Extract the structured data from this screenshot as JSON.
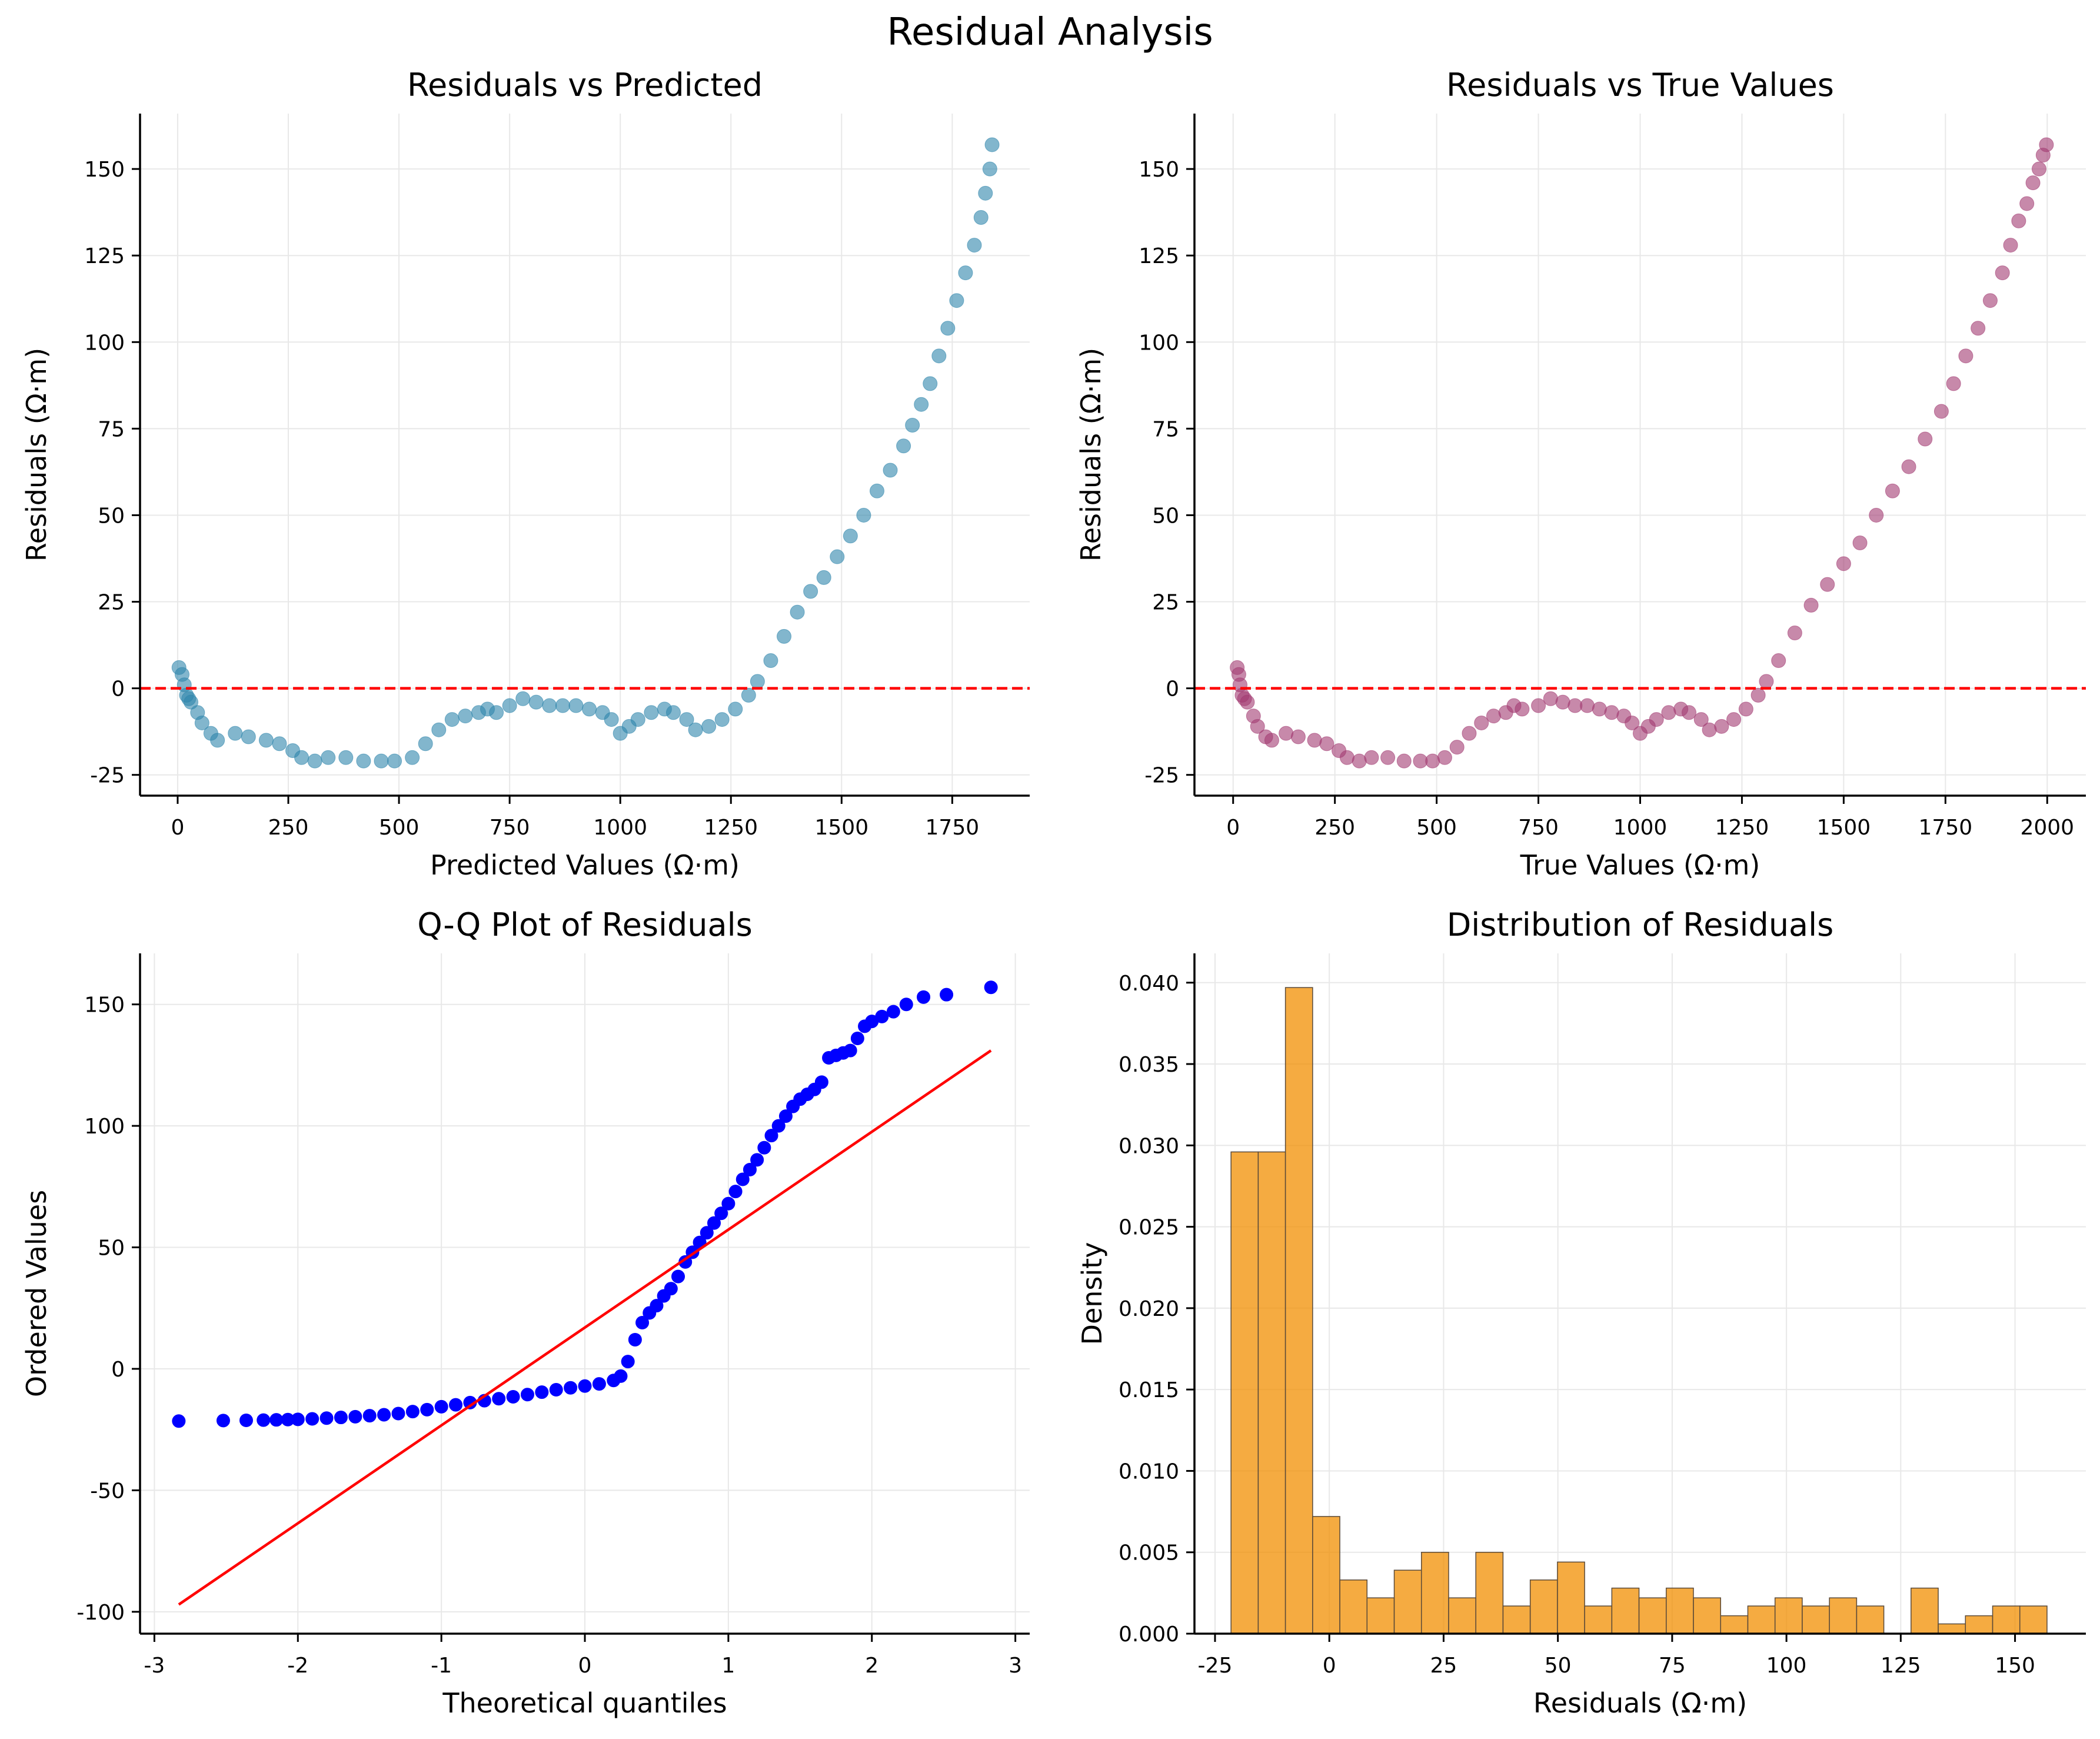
{
  "figure_title": "Residual Analysis",
  "colors": {
    "residuals_vs_predicted": "#2e86ab",
    "residuals_vs_true": "#a23b72",
    "qq_points": "#0000ff",
    "qq_line": "#ff0000",
    "histogram": "#f18f01",
    "zero_line": "#ff0000",
    "grid": "#e8e8e8"
  },
  "chart_data": [
    {
      "id": "pred",
      "type": "scatter",
      "title": "Residuals vs Predicted",
      "xlabel": "Predicted Values (Ω·m)",
      "ylabel": "Residuals (Ω·m)",
      "xlim": [
        -85,
        1925
      ],
      "ylim": [
        -31,
        166
      ],
      "xticks": [
        0,
        250,
        500,
        750,
        1000,
        1250,
        1500,
        1750
      ],
      "yticks": [
        -25,
        0,
        25,
        50,
        75,
        100,
        125,
        150
      ],
      "grid": true,
      "reference_line": {
        "y": 0,
        "style": "dashed"
      },
      "x": [
        3,
        10,
        15,
        20,
        25,
        30,
        45,
        55,
        75,
        90,
        130,
        160,
        200,
        230,
        260,
        280,
        310,
        340,
        380,
        420,
        460,
        490,
        530,
        560,
        590,
        620,
        650,
        680,
        700,
        720,
        750,
        780,
        810,
        840,
        870,
        900,
        930,
        960,
        980,
        1000,
        1020,
        1040,
        1070,
        1100,
        1120,
        1150,
        1170,
        1200,
        1230,
        1260,
        1290,
        1310,
        1340,
        1370,
        1400,
        1430,
        1460,
        1490,
        1520,
        1550,
        1580,
        1610,
        1640,
        1660,
        1680,
        1700,
        1720,
        1740,
        1760,
        1780,
        1800,
        1815,
        1825,
        1835,
        1840
      ],
      "y": [
        6,
        4,
        1,
        -2,
        -3,
        -4,
        -7,
        -10,
        -13,
        -15,
        -13,
        -14,
        -15,
        -16,
        -18,
        -20,
        -21,
        -20,
        -20,
        -21,
        -21,
        -21,
        -20,
        -16,
        -12,
        -9,
        -8,
        -7,
        -6,
        -7,
        -5,
        -3,
        -4,
        -5,
        -5,
        -5,
        -6,
        -7,
        -9,
        -13,
        -11,
        -9,
        -7,
        -6,
        -7,
        -9,
        -12,
        -11,
        -9,
        -6,
        -2,
        2,
        8,
        15,
        22,
        28,
        32,
        38,
        44,
        50,
        57,
        63,
        70,
        76,
        82,
        88,
        96,
        104,
        112,
        120,
        128,
        136,
        143,
        150,
        157
      ]
    },
    {
      "id": "true",
      "type": "scatter",
      "title": "Residuals vs True Values",
      "xlabel": "True Values (Ω·m)",
      "ylabel": "Residuals (Ω·m)",
      "xlim": [
        -95,
        2095
      ],
      "ylim": [
        -31,
        166
      ],
      "xticks": [
        0,
        250,
        500,
        750,
        1000,
        1250,
        1500,
        1750,
        2000
      ],
      "yticks": [
        -25,
        0,
        25,
        50,
        75,
        100,
        125,
        150
      ],
      "grid": true,
      "reference_line": {
        "y": 0,
        "style": "dashed"
      },
      "x": [
        10,
        14,
        17,
        22,
        28,
        35,
        50,
        60,
        80,
        95,
        130,
        160,
        200,
        230,
        260,
        280,
        310,
        340,
        380,
        420,
        460,
        490,
        520,
        550,
        580,
        610,
        640,
        670,
        690,
        710,
        750,
        780,
        810,
        840,
        870,
        900,
        930,
        960,
        980,
        1000,
        1020,
        1040,
        1070,
        1100,
        1120,
        1150,
        1170,
        1200,
        1230,
        1260,
        1290,
        1310,
        1340,
        1380,
        1420,
        1460,
        1500,
        1540,
        1580,
        1620,
        1660,
        1700,
        1740,
        1770,
        1800,
        1830,
        1860,
        1890,
        1910,
        1930,
        1950,
        1965,
        1980,
        1990,
        1998
      ],
      "y": [
        6,
        4,
        1,
        -2,
        -3,
        -4,
        -8,
        -11,
        -14,
        -15,
        -13,
        -14,
        -15,
        -16,
        -18,
        -20,
        -21,
        -20,
        -20,
        -21,
        -21,
        -21,
        -20,
        -17,
        -13,
        -10,
        -8,
        -7,
        -5,
        -6,
        -5,
        -3,
        -4,
        -5,
        -5,
        -6,
        -7,
        -8,
        -10,
        -13,
        -11,
        -9,
        -7,
        -6,
        -7,
        -9,
        -12,
        -11,
        -9,
        -6,
        -2,
        2,
        8,
        16,
        24,
        30,
        36,
        42,
        50,
        57,
        64,
        72,
        80,
        88,
        96,
        104,
        112,
        120,
        128,
        135,
        140,
        146,
        150,
        154,
        157
      ]
    },
    {
      "id": "qq",
      "type": "scatter",
      "title": "Q-Q Plot of Residuals",
      "xlabel": "Theoretical quantiles",
      "ylabel": "Ordered Values",
      "xlim": [
        -3.1,
        3.1
      ],
      "ylim": [
        -109,
        171
      ],
      "xticks": [
        -3,
        -2,
        -1,
        0,
        1,
        2,
        3
      ],
      "yticks": [
        -100,
        -50,
        0,
        50,
        100,
        150
      ],
      "grid": true,
      "fit_line": {
        "x": [
          -2.83,
          2.83
        ],
        "y": [
          -97,
          131
        ]
      },
      "x": [
        -2.83,
        -2.52,
        -2.36,
        -2.24,
        -2.15,
        -2.07,
        -2.0,
        -1.9,
        -1.8,
        -1.7,
        -1.6,
        -1.5,
        -1.4,
        -1.3,
        -1.2,
        -1.1,
        -1.0,
        -0.9,
        -0.8,
        -0.7,
        -0.6,
        -0.5,
        -0.4,
        -0.3,
        -0.2,
        -0.1,
        0.0,
        0.1,
        0.2,
        0.25,
        0.3,
        0.35,
        0.4,
        0.45,
        0.5,
        0.55,
        0.6,
        0.65,
        0.7,
        0.75,
        0.8,
        0.85,
        0.9,
        0.95,
        1.0,
        1.05,
        1.1,
        1.15,
        1.2,
        1.25,
        1.3,
        1.35,
        1.4,
        1.45,
        1.5,
        1.55,
        1.6,
        1.65,
        1.7,
        1.75,
        1.8,
        1.85,
        1.9,
        1.95,
        2.0,
        2.07,
        2.15,
        2.24,
        2.36,
        2.52,
        2.83
      ],
      "y": [
        -21.5,
        -21.3,
        -21.2,
        -21.1,
        -21.0,
        -20.9,
        -20.8,
        -20.6,
        -20.3,
        -20.0,
        -19.7,
        -19.3,
        -18.9,
        -18.4,
        -17.6,
        -16.8,
        -15.6,
        -14.8,
        -13.9,
        -13.1,
        -12.3,
        -11.5,
        -10.6,
        -9.6,
        -8.6,
        -7.8,
        -7.1,
        -6.2,
        -4.8,
        -3.0,
        3.0,
        12.0,
        19.0,
        23.0,
        26.0,
        30.0,
        33.0,
        38.0,
        44.0,
        48.0,
        52.0,
        56.0,
        60.0,
        64.0,
        68.0,
        73.0,
        78.0,
        82.0,
        86.0,
        91.0,
        96.0,
        100.0,
        104.0,
        108.0,
        111.0,
        113.0,
        115.0,
        118.0,
        128.0,
        129.0,
        130.0,
        131.0,
        136.0,
        141.0,
        143.0,
        145.0,
        147.0,
        150.0,
        153.0,
        154.0,
        157.0
      ]
    },
    {
      "id": "hist",
      "type": "bar",
      "title": "Distribution of Residuals",
      "xlabel": "Residuals (Ω·m)",
      "ylabel": "Density",
      "xlim": [
        -29.5,
        165.5
      ],
      "ylim": [
        0,
        0.0418
      ],
      "xticks": [
        -25,
        0,
        25,
        50,
        75,
        100,
        125,
        150
      ],
      "yticks": [
        0.0,
        0.005,
        0.01,
        0.015,
        0.02,
        0.025,
        0.03,
        0.035,
        0.04
      ],
      "ytick_labels": [
        "0.000",
        "0.005",
        "0.010",
        "0.015",
        "0.020",
        "0.025",
        "0.030",
        "0.035",
        "0.040"
      ],
      "grid": true,
      "bin_start": -21.5,
      "bin_width": 5.95,
      "values": [
        0.0296,
        0.0296,
        0.0397,
        0.0072,
        0.0033,
        0.0022,
        0.0039,
        0.005,
        0.0022,
        0.005,
        0.0017,
        0.0033,
        0.0044,
        0.0017,
        0.0028,
        0.0022,
        0.0028,
        0.0022,
        0.0011,
        0.0017,
        0.0022,
        0.0017,
        0.0022,
        0.0017,
        0.0,
        0.0028,
        0.0006,
        0.0011,
        0.0017,
        0.0017
      ]
    }
  ]
}
